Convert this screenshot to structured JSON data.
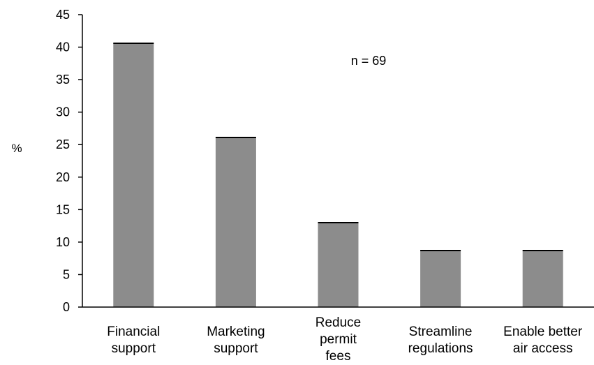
{
  "chart_data": {
    "type": "bar",
    "title": "",
    "xlabel": "",
    "ylabel": "%",
    "ylim": [
      0,
      45
    ],
    "yticks": [
      0,
      5,
      10,
      15,
      20,
      25,
      30,
      35,
      40,
      45
    ],
    "grid": false,
    "legend": "none",
    "annotation": "n = 69",
    "categories": [
      "Financial support",
      "Marketing support",
      "Reduce permit fees",
      "Streamline regulations",
      "Enable better air access"
    ],
    "category_label_lines": [
      [
        "Financial",
        "support"
      ],
      [
        "Marketing",
        "support"
      ],
      [
        "Reduce",
        "permit",
        "fees"
      ],
      [
        "Streamline",
        "regulations"
      ],
      [
        "Enable better",
        "air access"
      ]
    ],
    "values": [
      40.6,
      26.1,
      13.0,
      8.7,
      8.7
    ],
    "colors": {
      "bar_fill": "#8c8c8c",
      "bar_stroke": "#000000",
      "axis": "#000000",
      "text": "#000000"
    }
  }
}
